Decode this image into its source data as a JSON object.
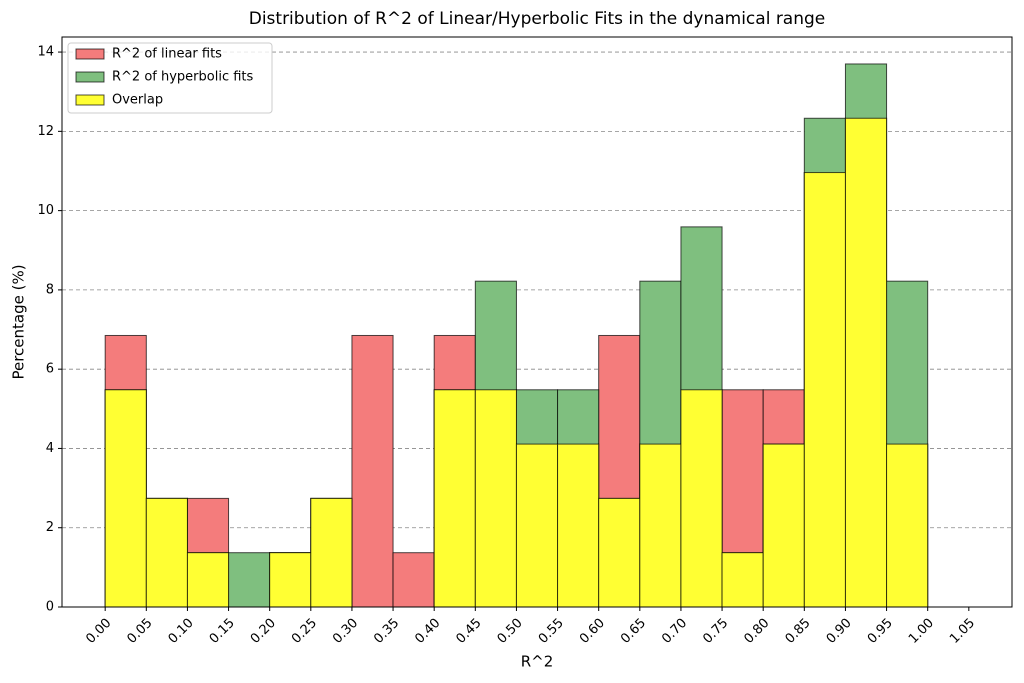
{
  "chart_data": {
    "type": "histogram",
    "title": "Distribution of R^2 of Linear/Hyperbolic Fits in the dynamical range",
    "x_label": "R^2",
    "y_label": "Percentage (%)",
    "bins": [
      0,
      0.05,
      0.1,
      0.15,
      0.2,
      0.25,
      0.3,
      0.35,
      0.4,
      0.45,
      0.5,
      0.55,
      0.6,
      0.65,
      0.7,
      0.75,
      0.8,
      0.85,
      0.9,
      0.95,
      1,
      1.05
    ],
    "series": [
      {
        "name": "R^2 of linear fits",
        "color": "#f47c7c",
        "values": [
          6.85,
          2.74,
          2.74,
          0,
          1.37,
          2.74,
          6.85,
          1.37,
          6.85,
          5.48,
          4.11,
          4.11,
          6.85,
          4.11,
          5.48,
          5.48,
          5.48,
          10.96,
          12.33,
          4.11,
          0
        ]
      },
      {
        "name": "R^2 of hyperbolic fits",
        "color": "#7fbf7f",
        "values": [
          5.48,
          2.74,
          1.37,
          1.37,
          1.37,
          2.74,
          0,
          0,
          5.48,
          8.22,
          5.48,
          5.48,
          2.74,
          8.22,
          9.59,
          1.37,
          4.11,
          12.33,
          13.7,
          8.22,
          0
        ]
      },
      {
        "name": "Overlap",
        "color": "#ffff33",
        "values": [
          5.48,
          2.74,
          1.37,
          0,
          1.37,
          2.74,
          0,
          0,
          5.48,
          5.48,
          4.11,
          4.11,
          2.74,
          4.11,
          5.48,
          1.37,
          4.11,
          10.96,
          12.33,
          4.11,
          0
        ]
      }
    ],
    "xlim": [
      -0.0525,
      1.1025
    ],
    "ylim": [
      0,
      14.38
    ],
    "xticks": [
      {
        "value": 0,
        "label": "0.00"
      },
      0.05,
      {
        "value": 0.1,
        "label": "0.10"
      },
      0.15,
      {
        "value": 0.2,
        "label": "0.20"
      },
      0.25,
      {
        "value": 0.3,
        "label": "0.30"
      },
      0.35,
      {
        "value": 0.4,
        "label": "0.40"
      },
      0.45,
      {
        "value": 0.5,
        "label": "0.50"
      },
      0.55,
      {
        "value": 0.6,
        "label": "0.60"
      },
      0.65,
      {
        "value": 0.7,
        "label": "0.70"
      },
      0.75,
      {
        "value": 0.8,
        "label": "0.80"
      },
      0.85,
      {
        "value": 0.9,
        "label": "0.90"
      },
      0.95,
      {
        "value": 1,
        "label": "1.00"
      },
      1.05
    ],
    "yticks": [
      0,
      2,
      4,
      6,
      8,
      10,
      12,
      14
    ],
    "grid": "y",
    "legend": "upper left"
  }
}
